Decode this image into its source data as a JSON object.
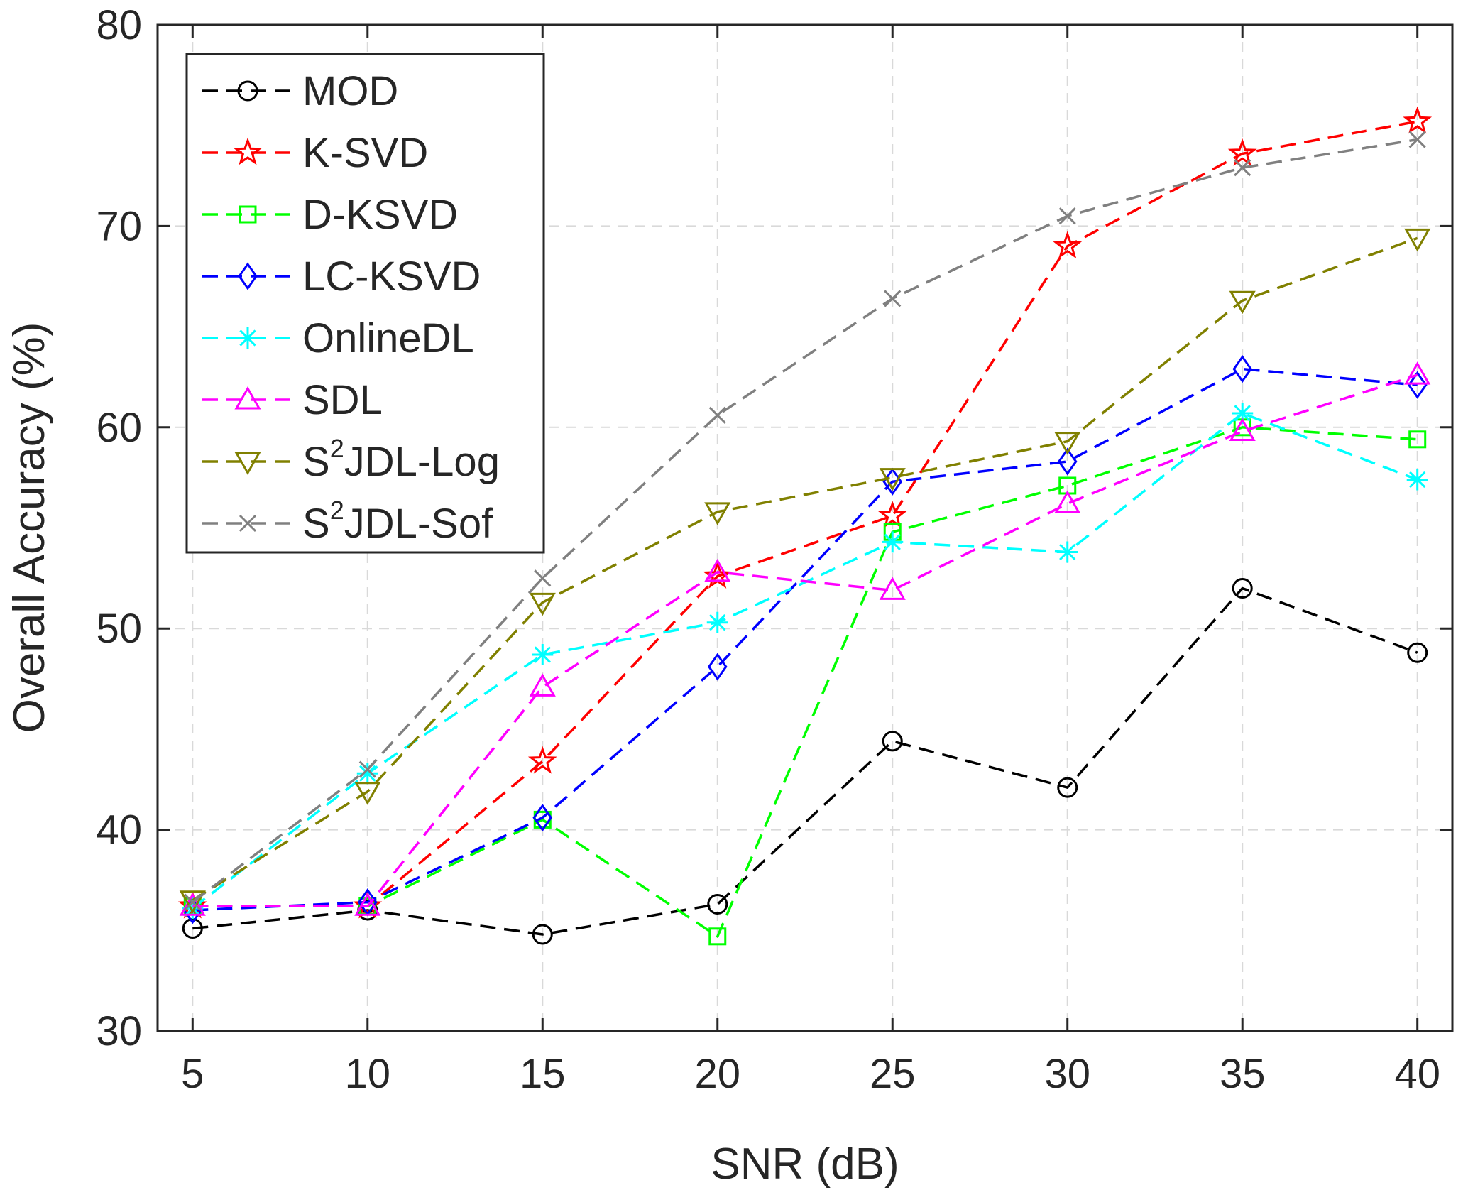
{
  "chart_data": {
    "type": "line",
    "title": "",
    "xlabel": "SNR (dB)",
    "ylabel": "Overall Accuracy (%)",
    "x": [
      5,
      10,
      15,
      20,
      25,
      30,
      35,
      40
    ],
    "xlim": [
      4,
      41
    ],
    "ylim": [
      30,
      80
    ],
    "xticks": [
      "5",
      "10",
      "15",
      "20",
      "25",
      "30",
      "35",
      "40"
    ],
    "yticks": [
      "30",
      "40",
      "50",
      "60",
      "70",
      "80"
    ],
    "grid": true,
    "legend_position": "top-left",
    "series": [
      {
        "name": "MOD",
        "label_main": "MOD",
        "label_sup": "",
        "label_tail": "",
        "color": "#000000",
        "marker": "circle",
        "values": [
          35.1,
          36.0,
          34.8,
          36.3,
          44.4,
          42.1,
          52.0,
          48.8
        ]
      },
      {
        "name": "K-SVD",
        "label_main": "K-SVD",
        "label_sup": "",
        "label_tail": "",
        "color": "#ff0000",
        "marker": "star",
        "values": [
          36.2,
          36.2,
          43.4,
          52.6,
          55.6,
          69.0,
          73.6,
          75.2
        ]
      },
      {
        "name": "D-KSVD",
        "label_main": "D-KSVD",
        "label_sup": "",
        "label_tail": "",
        "color": "#00ff00",
        "marker": "square",
        "values": [
          36.2,
          36.2,
          40.5,
          34.7,
          54.8,
          57.1,
          60.0,
          59.4
        ]
      },
      {
        "name": "LC-KSVD",
        "label_main": "LC-KSVD",
        "label_sup": "",
        "label_tail": "",
        "color": "#0000ff",
        "marker": "diamond",
        "values": [
          36.0,
          36.4,
          40.6,
          48.1,
          57.3,
          58.3,
          62.9,
          62.1
        ]
      },
      {
        "name": "OnlineDL",
        "label_main": "OnlineDL",
        "label_sup": "",
        "label_tail": "",
        "color": "#00ffff",
        "marker": "asterisk",
        "values": [
          36.1,
          42.8,
          48.7,
          50.3,
          54.3,
          53.8,
          60.7,
          57.4
        ]
      },
      {
        "name": "SDL",
        "label_main": "SDL",
        "label_sup": "",
        "label_tail": "",
        "color": "#ff00ff",
        "marker": "triangle-up",
        "values": [
          36.2,
          36.2,
          47.1,
          52.8,
          51.9,
          56.2,
          59.8,
          62.6
        ]
      },
      {
        "name": "S2JDL-Log",
        "label_main": "S",
        "label_sup": "2",
        "label_tail": "JDL-Log",
        "color": "#808000",
        "marker": "triangle-down",
        "values": [
          36.5,
          41.9,
          51.3,
          55.8,
          57.5,
          59.3,
          66.3,
          69.4
        ]
      },
      {
        "name": "S2JDL-Sof",
        "label_main": "S",
        "label_sup": "2",
        "label_tail": "JDL-Sof",
        "color": "#808080",
        "marker": "x",
        "values": [
          36.4,
          43.0,
          52.5,
          60.6,
          66.4,
          70.5,
          72.9,
          74.3
        ]
      }
    ]
  }
}
